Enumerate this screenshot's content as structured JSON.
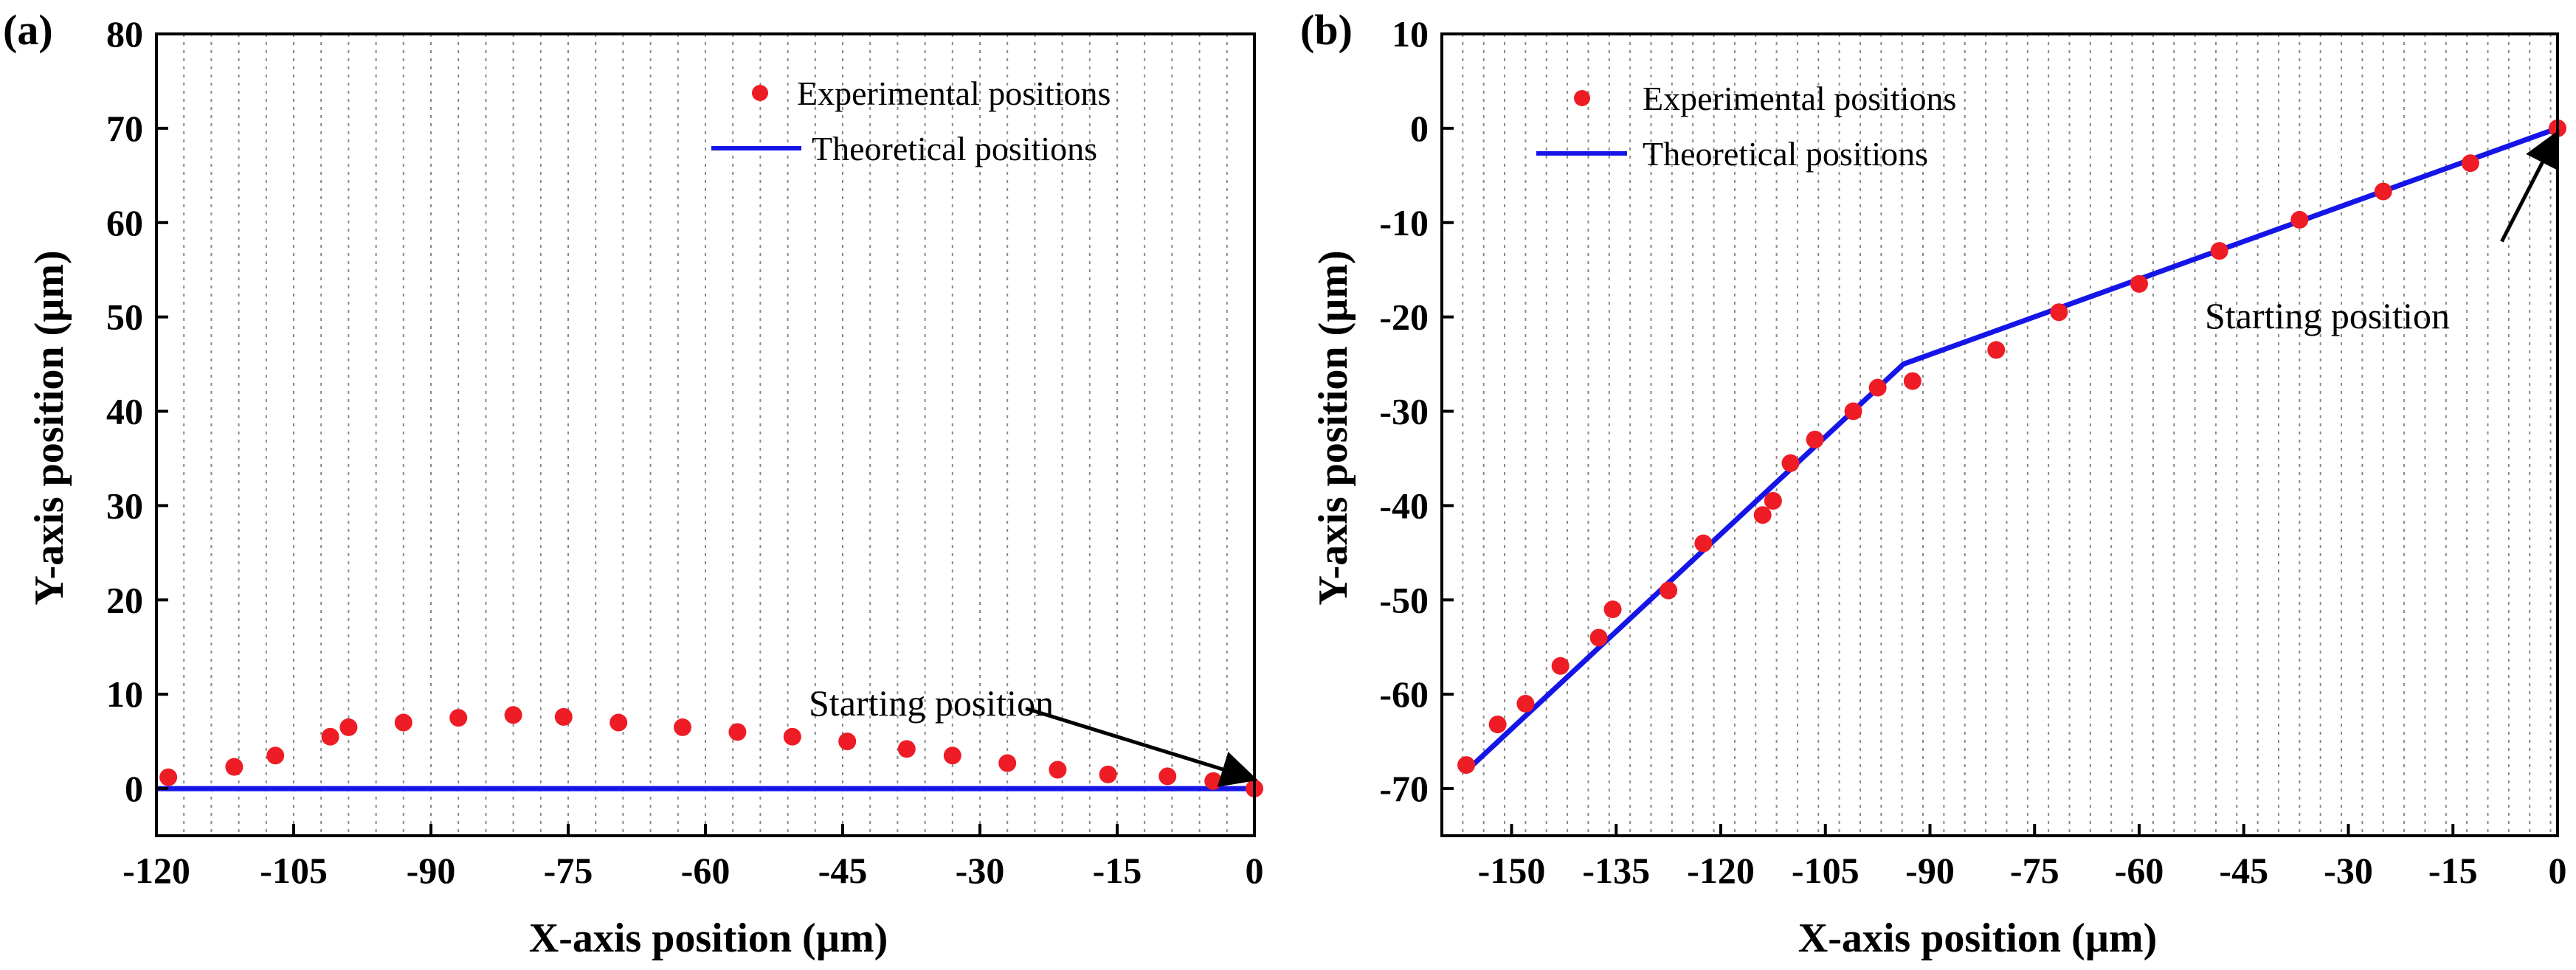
{
  "chart_data": [
    {
      "panel": "(a)",
      "type": "scatter",
      "xlabel": "X-axis position (µm)",
      "ylabel": "Y-axis position (µm)",
      "xlim": [
        -120,
        0
      ],
      "ylim": [
        -5,
        80
      ],
      "xticks": [
        -120,
        -105,
        -90,
        -75,
        -60,
        -45,
        -30,
        -15,
        0
      ],
      "yticks": [
        0,
        10,
        20,
        30,
        40,
        50,
        60,
        70,
        80
      ],
      "grid": "vertical dotted",
      "legend_position": "top-right",
      "series": [
        {
          "name": "Experimental positions",
          "kind": "markers",
          "color": "#ee1c25",
          "points": [
            [
              -118.7,
              1.2
            ],
            [
              -111.5,
              2.3
            ],
            [
              -107,
              3.5
            ],
            [
              -101,
              5.5
            ],
            [
              -99,
              6.5
            ],
            [
              -93,
              7.0
            ],
            [
              -87,
              7.5
            ],
            [
              -81,
              7.8
            ],
            [
              -75.5,
              7.6
            ],
            [
              -69.5,
              7.0
            ],
            [
              -62.5,
              6.5
            ],
            [
              -56.5,
              6.0
            ],
            [
              -50.5,
              5.5
            ],
            [
              -44.5,
              5.0
            ],
            [
              -38,
              4.2
            ],
            [
              -33,
              3.5
            ],
            [
              -27,
              2.7
            ],
            [
              -21.5,
              2.0
            ],
            [
              -16,
              1.5
            ],
            [
              -9.5,
              1.3
            ],
            [
              -4.5,
              0.8
            ],
            [
              0,
              0
            ]
          ]
        },
        {
          "name": "Theoretical positions",
          "kind": "line",
          "color": "#1515e8",
          "points": [
            [
              -120,
              0
            ],
            [
              0,
              0
            ]
          ]
        }
      ],
      "annotations": [
        {
          "text": "Starting position",
          "from": [
            -25,
            8.5
          ],
          "to": [
            0,
            1.0
          ]
        }
      ]
    },
    {
      "panel": "(b)",
      "type": "scatter",
      "xlabel": "X-axis position (µm)",
      "ylabel": "Y-axis position (µm)",
      "xlim": [
        -160,
        0
      ],
      "ylim": [
        -75,
        10
      ],
      "xticks": [
        -150,
        -135,
        -120,
        -105,
        -90,
        -75,
        -60,
        -45,
        -30,
        -15,
        0
      ],
      "yticks": [
        -70,
        -60,
        -50,
        -40,
        -30,
        -20,
        -10,
        0,
        10
      ],
      "grid": "vertical dotted",
      "legend_position": "top-left",
      "series": [
        {
          "name": "Experimental positions",
          "kind": "markers",
          "color": "#ee1c25",
          "points": [
            [
              -156.5,
              -67.5
            ],
            [
              -152,
              -63.2
            ],
            [
              -148,
              -61.0
            ],
            [
              -143,
              -57.0
            ],
            [
              -135.5,
              -51.0
            ],
            [
              -137.5,
              -54.0
            ],
            [
              -127.5,
              -49.0
            ],
            [
              -122.5,
              -44.0
            ],
            [
              -114,
              -41.0
            ],
            [
              -112.5,
              -39.5
            ],
            [
              -110,
              -35.5
            ],
            [
              -106.5,
              -33.0
            ],
            [
              -101,
              -30.0
            ],
            [
              -97.5,
              -27.5
            ],
            [
              -92.5,
              -26.8
            ],
            [
              -80.5,
              -23.5
            ],
            [
              -71.5,
              -19.5
            ],
            [
              -60,
              -16.5
            ],
            [
              -48.5,
              -13.0
            ],
            [
              -37,
              -9.7
            ],
            [
              -25,
              -6.7
            ],
            [
              -12.5,
              -3.7
            ],
            [
              0,
              0
            ]
          ]
        },
        {
          "name": "Theoretical positions",
          "kind": "line",
          "color": "#1515e8",
          "points": [
            [
              -156.3,
              -68.0
            ],
            [
              -93.8,
              -25.0
            ],
            [
              0,
              0
            ]
          ]
        }
      ],
      "annotations": [
        {
          "text": "Starting position",
          "from": [
            -8,
            -12
          ],
          "to": [
            0,
            -0.5
          ]
        }
      ]
    }
  ]
}
